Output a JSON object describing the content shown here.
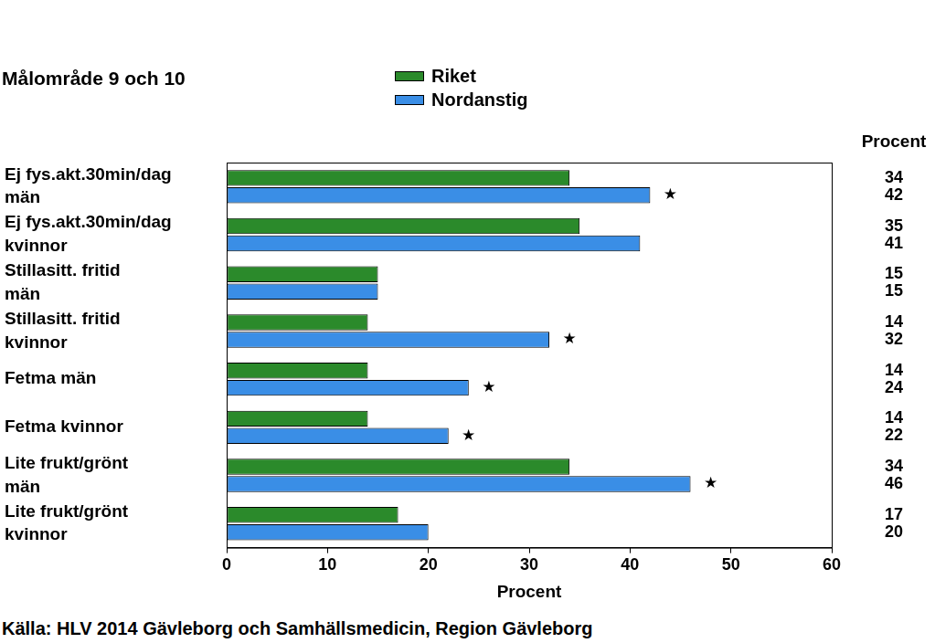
{
  "chart_data": {
    "type": "bar",
    "orientation": "horizontal",
    "title": "Målområde 9 och 10",
    "x_label": "Procent",
    "value_label_header": "Procent",
    "source": "Källa: HLV 2014 Gävleborg och Samhällsmedicin, Region Gävleborg",
    "categories": [
      [
        "Ej fys.akt.30min/dag",
        "män"
      ],
      [
        "Ej fys.akt.30min/dag",
        "kvinnor"
      ],
      [
        "Stillasitt. fritid",
        "män"
      ],
      [
        "Stillasitt. fritid",
        "kvinnor"
      ],
      "Fetma män",
      "Fetma kvinnor",
      [
        "Lite frukt/grönt",
        "män"
      ],
      [
        "Lite frukt/grönt",
        "kvinnor"
      ]
    ],
    "series": [
      {
        "name": "Riket",
        "color": "#2b8a2b",
        "values": [
          34,
          35,
          15,
          14,
          14,
          14,
          34,
          17
        ]
      },
      {
        "name": "Nordanstig",
        "color": "#3a8ee6",
        "values": [
          42,
          41,
          15,
          32,
          24,
          22,
          46,
          20
        ]
      }
    ],
    "xlim": [
      0,
      60
    ],
    "xticks": [
      0,
      10,
      20,
      30,
      40,
      50,
      60
    ],
    "grid": false,
    "data_labels": true,
    "annotations": [
      {
        "series": 1,
        "category": 0,
        "text": "★"
      },
      {
        "series": 1,
        "category": 3,
        "text": "★"
      },
      {
        "series": 1,
        "category": 4,
        "text": "★"
      },
      {
        "series": 1,
        "category": 5,
        "text": "★"
      },
      {
        "series": 1,
        "category": 6,
        "text": "★"
      }
    ]
  }
}
